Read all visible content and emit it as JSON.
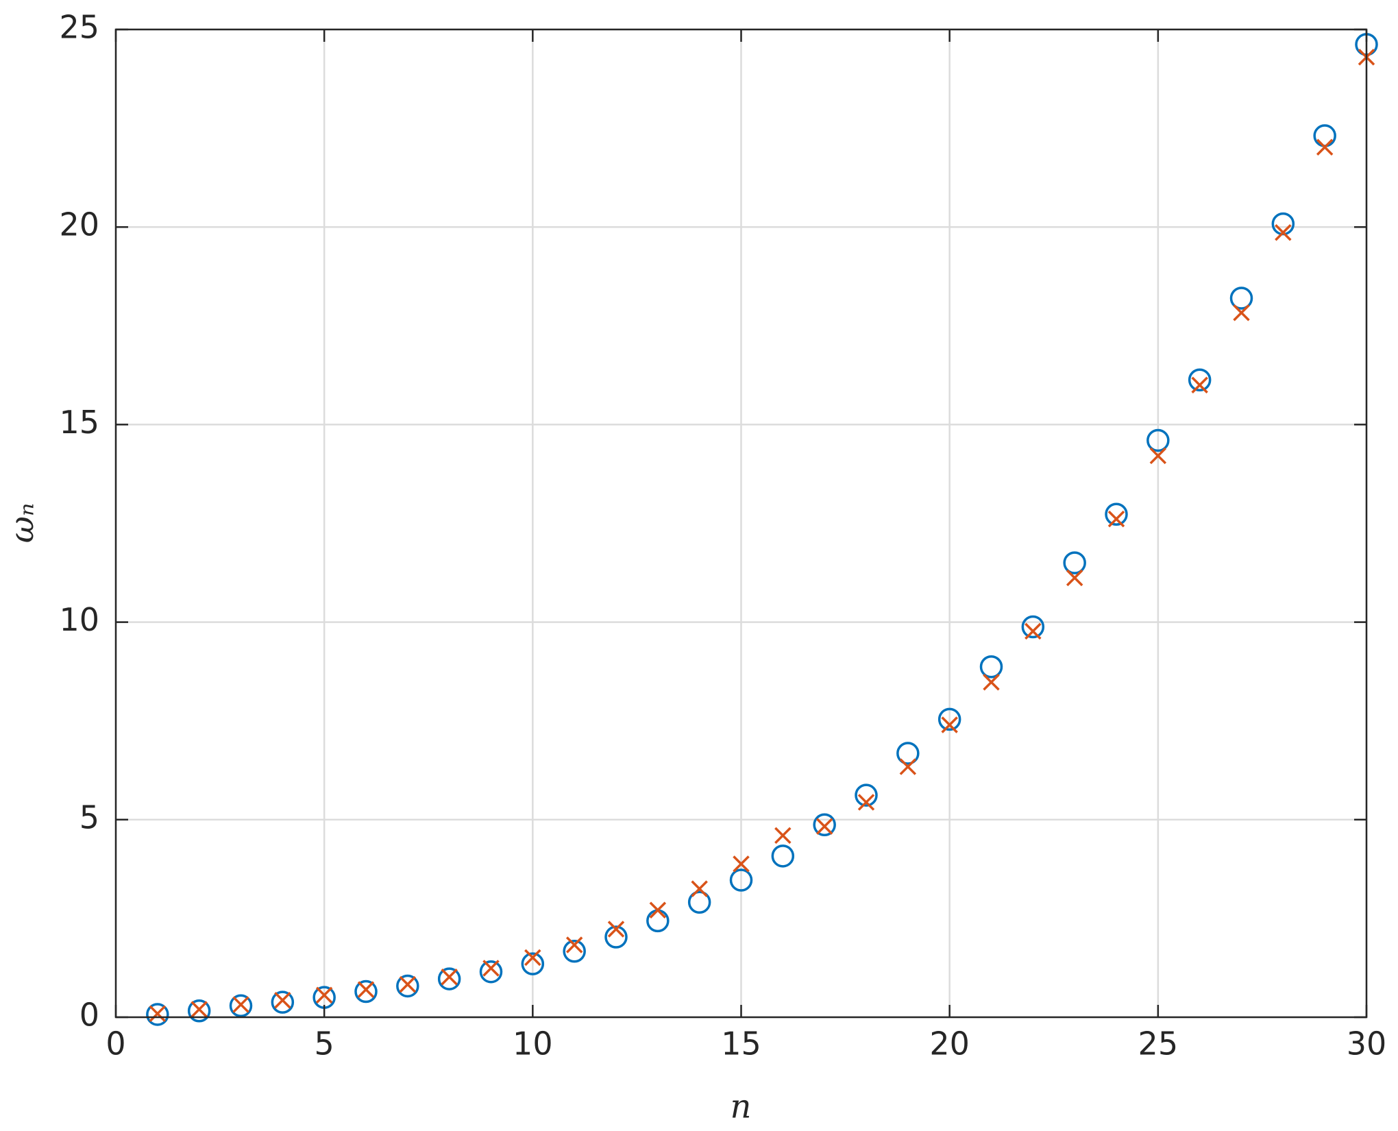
{
  "chart_data": {
    "type": "scatter",
    "x_label": "n",
    "y_label": "ωₙ",
    "x": [
      1,
      2,
      3,
      4,
      5,
      6,
      7,
      8,
      9,
      10,
      11,
      12,
      13,
      14,
      15,
      16,
      17,
      18,
      19,
      20,
      21,
      22,
      23,
      24,
      25,
      26,
      27,
      28,
      29,
      30
    ],
    "series": [
      {
        "color": "#0072BD",
        "marker": "o",
        "values": [
          0.07,
          0.16,
          0.29,
          0.38,
          0.5,
          0.65,
          0.79,
          0.97,
          1.15,
          1.35,
          1.67,
          2.03,
          2.44,
          2.91,
          3.47,
          4.08,
          4.87,
          5.62,
          6.68,
          7.54,
          8.87,
          9.88,
          11.5,
          12.73,
          14.6,
          16.13,
          18.2,
          20.08,
          22.31,
          24.62
        ]
      },
      {
        "color": "#D95319",
        "marker": "x",
        "values": [
          0.09,
          0.2,
          0.32,
          0.43,
          0.56,
          0.7,
          0.83,
          1.02,
          1.24,
          1.51,
          1.83,
          2.23,
          2.71,
          3.25,
          3.88,
          4.6,
          4.83,
          5.44,
          6.34,
          7.4,
          8.48,
          9.77,
          11.12,
          12.61,
          14.21,
          16.0,
          17.83,
          19.86,
          22.02,
          24.3
        ]
      }
    ],
    "xlim": [
      0,
      30
    ],
    "xticks": [
      0,
      5,
      10,
      15,
      20,
      25,
      30
    ],
    "ylim": [
      0,
      25
    ],
    "yticks": [
      0,
      5,
      10,
      15,
      20,
      25
    ],
    "grid": true
  }
}
